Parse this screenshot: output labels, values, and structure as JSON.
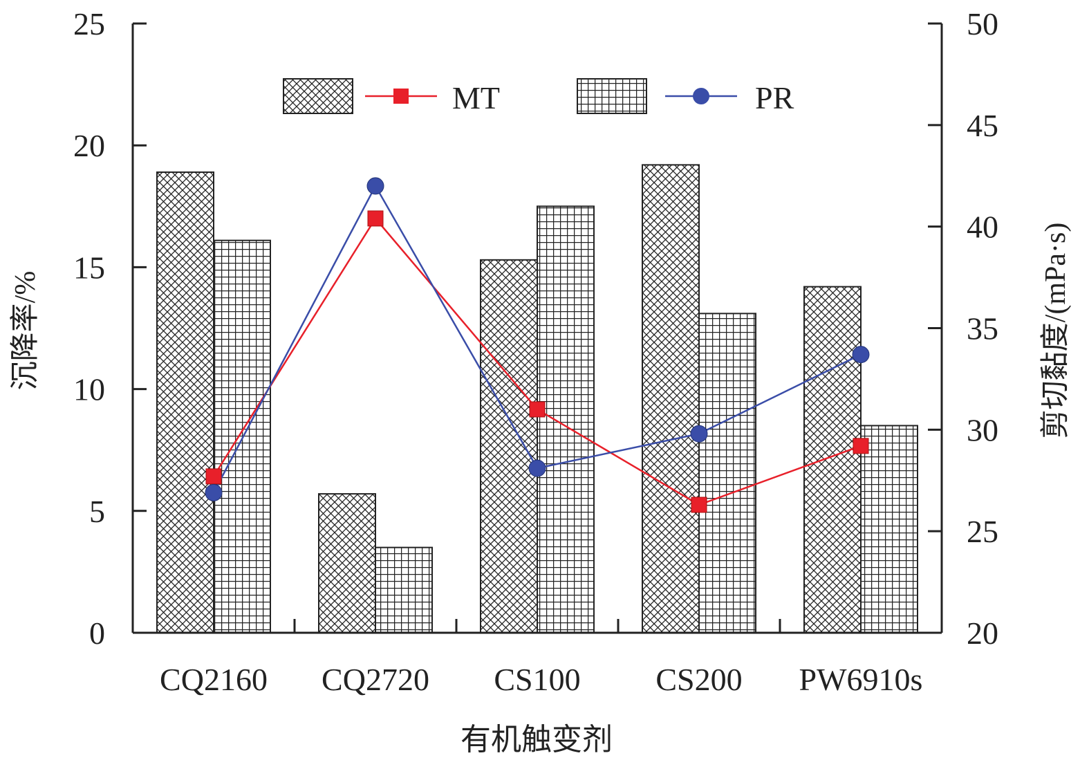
{
  "chart_data": {
    "type": "bar",
    "categories": [
      "CQ2160",
      "CQ2720",
      "CS100",
      "CS200",
      "PW6910s"
    ],
    "xlabel": "有机触变剂",
    "ylabel_left": "沉降率/%",
    "ylabel_right": "剪切黏度/(mPa·s)",
    "ylim_left": [
      0,
      25
    ],
    "ylim_right": [
      20,
      50
    ],
    "yticks_left": [
      "0",
      "5",
      "10",
      "15",
      "20",
      "25"
    ],
    "yticks_right": [
      "20",
      "25",
      "30",
      "35",
      "40",
      "45",
      "50"
    ],
    "bar_series": [
      {
        "pattern": "crosshatch",
        "axis": "left",
        "values": [
          18.9,
          5.7,
          15.3,
          19.2,
          14.2
        ]
      },
      {
        "pattern": "grid",
        "axis": "left",
        "values": [
          16.1,
          3.5,
          17.5,
          13.1,
          8.5
        ]
      }
    ],
    "line_series": [
      {
        "name": "MT",
        "axis": "right",
        "color": "#e8202a",
        "marker": "square",
        "values": [
          27.7,
          40.4,
          31.0,
          26.3,
          29.2
        ]
      },
      {
        "name": "PR",
        "axis": "right",
        "color": "#3a4da8",
        "marker": "circle",
        "values": [
          26.9,
          42.0,
          28.1,
          29.8,
          33.7
        ]
      }
    ],
    "legend": {
      "placement": "top",
      "entries": [
        {
          "kind": "bar",
          "pattern": "crosshatch"
        },
        {
          "kind": "line",
          "series": "MT",
          "label": "MT"
        },
        {
          "kind": "bar",
          "pattern": "grid"
        },
        {
          "kind": "line",
          "series": "PR",
          "label": "PR"
        }
      ]
    },
    "grid": false
  }
}
